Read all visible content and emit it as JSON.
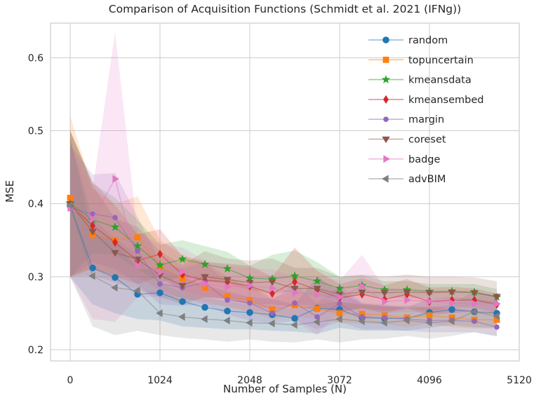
{
  "figure": {
    "title": "Comparison of Acquisition Functions (Schmidt et al. 2021 (IFNg))",
    "xlabel": "Number of Samples (N)",
    "ylabel": "MSE"
  },
  "chart_data": {
    "type": "line",
    "title": "Comparison of Acquisition Functions (Schmidt et al. 2021 (IFNg))",
    "xlabel": "Number of Samples (N)",
    "ylabel": "MSE",
    "grid": true,
    "legend_position": "upper right",
    "xticks": [
      0,
      1024,
      2048,
      3072,
      4096,
      5120
    ],
    "yticks": [
      0.2,
      0.3,
      0.4,
      0.5,
      0.6
    ],
    "xlim": [
      -224,
      5120
    ],
    "ylim": [
      0.195,
      0.647
    ],
    "band_opacity": 0.18,
    "line_opacity": 0.5,
    "x": [
      0,
      256,
      512,
      768,
      1024,
      1280,
      1536,
      1792,
      2048,
      2304,
      2560,
      2816,
      3072,
      3328,
      3584,
      3840,
      4096,
      4352,
      4608,
      4864
    ],
    "series": [
      {
        "name": "random",
        "color": "#1f77b4",
        "marker": "circle",
        "values": [
          0.397,
          0.312,
          0.299,
          0.276,
          0.278,
          0.266,
          0.258,
          0.253,
          0.251,
          0.248,
          0.243,
          0.257,
          0.255,
          0.244,
          0.243,
          0.243,
          0.251,
          0.255,
          0.252,
          0.25
        ],
        "band_lower": [
          0.3,
          0.262,
          0.25,
          0.242,
          0.24,
          0.232,
          0.23,
          0.228,
          0.228,
          0.226,
          0.225,
          0.222,
          0.23,
          0.226,
          0.226,
          0.226,
          0.23,
          0.234,
          0.231,
          0.23
        ],
        "band_upper": [
          0.49,
          0.36,
          0.35,
          0.31,
          0.312,
          0.3,
          0.288,
          0.28,
          0.272,
          0.27,
          0.262,
          0.3,
          0.28,
          0.263,
          0.26,
          0.258,
          0.27,
          0.272,
          0.27,
          0.266
        ]
      },
      {
        "name": "topuncertain",
        "color": "#ff7f0e",
        "marker": "square",
        "values": [
          0.408,
          0.357,
          0.35,
          0.354,
          0.314,
          0.297,
          0.285,
          0.273,
          0.268,
          0.255,
          0.261,
          0.256,
          0.25,
          0.249,
          0.247,
          0.244,
          0.247,
          0.244,
          0.241,
          0.241
        ],
        "band_lower": [
          0.3,
          0.31,
          0.302,
          0.3,
          0.282,
          0.27,
          0.266,
          0.258,
          0.252,
          0.242,
          0.246,
          0.242,
          0.237,
          0.236,
          0.235,
          0.231,
          0.236,
          0.231,
          0.229,
          0.229
        ],
        "band_upper": [
          0.52,
          0.42,
          0.4,
          0.41,
          0.35,
          0.33,
          0.32,
          0.3,
          0.288,
          0.272,
          0.28,
          0.272,
          0.265,
          0.263,
          0.26,
          0.256,
          0.26,
          0.257,
          0.252,
          0.252
        ]
      },
      {
        "name": "kmeansdata",
        "color": "#2ca02c",
        "marker": "star",
        "values": [
          0.4,
          0.378,
          0.368,
          0.342,
          0.316,
          0.324,
          0.317,
          0.311,
          0.298,
          0.297,
          0.301,
          0.294,
          0.284,
          0.288,
          0.282,
          0.282,
          0.28,
          0.28,
          0.279,
          0.272
        ],
        "band_lower": [
          0.3,
          0.332,
          0.33,
          0.31,
          0.292,
          0.3,
          0.294,
          0.29,
          0.282,
          0.276,
          0.28,
          0.272,
          0.27,
          0.275,
          0.271,
          0.271,
          0.27,
          0.27,
          0.269,
          0.261
        ],
        "band_upper": [
          0.5,
          0.428,
          0.408,
          0.378,
          0.344,
          0.35,
          0.342,
          0.334,
          0.315,
          0.33,
          0.336,
          0.32,
          0.3,
          0.302,
          0.294,
          0.294,
          0.29,
          0.29,
          0.29,
          0.283
        ]
      },
      {
        "name": "kmeansembed",
        "color": "#d62728",
        "marker": "thin-diamond",
        "values": [
          0.399,
          0.37,
          0.347,
          0.322,
          0.331,
          0.303,
          0.295,
          0.293,
          0.287,
          0.277,
          0.293,
          0.282,
          0.271,
          0.276,
          0.269,
          0.276,
          0.266,
          0.268,
          0.268,
          0.262
        ],
        "band_lower": [
          0.3,
          0.312,
          0.3,
          0.29,
          0.3,
          0.28,
          0.272,
          0.27,
          0.262,
          0.256,
          0.262,
          0.26,
          0.252,
          0.256,
          0.25,
          0.256,
          0.248,
          0.25,
          0.254,
          0.248
        ],
        "band_upper": [
          0.5,
          0.43,
          0.398,
          0.358,
          0.365,
          0.328,
          0.32,
          0.318,
          0.315,
          0.3,
          0.34,
          0.308,
          0.29,
          0.298,
          0.288,
          0.297,
          0.285,
          0.286,
          0.284,
          0.277
        ]
      },
      {
        "name": "margin",
        "color": "#9467bd",
        "marker": "small-circle",
        "values": [
          0.394,
          0.386,
          0.381,
          0.335,
          0.29,
          0.285,
          0.292,
          0.268,
          0.264,
          0.25,
          0.264,
          0.245,
          0.263,
          0.245,
          0.244,
          0.242,
          0.24,
          0.24,
          0.239,
          0.231
        ],
        "band_lower": [
          0.3,
          0.32,
          0.31,
          0.29,
          0.262,
          0.26,
          0.262,
          0.248,
          0.24,
          0.236,
          0.24,
          0.228,
          0.238,
          0.228,
          0.228,
          0.226,
          0.224,
          0.224,
          0.224,
          0.218
        ],
        "band_upper": [
          0.48,
          0.44,
          0.442,
          0.382,
          0.32,
          0.312,
          0.32,
          0.292,
          0.288,
          0.268,
          0.29,
          0.264,
          0.288,
          0.264,
          0.262,
          0.258,
          0.257,
          0.257,
          0.254,
          0.245
        ]
      },
      {
        "name": "coreset",
        "color": "#8c564b",
        "marker": "triangle-down",
        "values": [
          0.4,
          0.362,
          0.333,
          0.324,
          0.302,
          0.288,
          0.3,
          0.296,
          0.292,
          0.293,
          0.284,
          0.284,
          0.276,
          0.279,
          0.278,
          0.279,
          0.278,
          0.279,
          0.278,
          0.273
        ],
        "band_lower": [
          0.3,
          0.302,
          0.292,
          0.282,
          0.272,
          0.262,
          0.272,
          0.27,
          0.262,
          0.262,
          0.258,
          0.255,
          0.252,
          0.257,
          0.253,
          0.257,
          0.253,
          0.258,
          0.258,
          0.25
        ],
        "band_upper": [
          0.5,
          0.425,
          0.38,
          0.368,
          0.335,
          0.316,
          0.335,
          0.325,
          0.322,
          0.325,
          0.312,
          0.312,
          0.3,
          0.303,
          0.3,
          0.303,
          0.3,
          0.3,
          0.299,
          0.294
        ]
      },
      {
        "name": "badge",
        "color": "#e377c2",
        "marker": "triangle-right",
        "values": [
          0.394,
          0.379,
          0.434,
          0.315,
          0.306,
          0.307,
          0.29,
          0.286,
          0.288,
          0.284,
          0.278,
          0.276,
          0.272,
          0.287,
          0.266,
          0.268,
          0.266,
          0.264,
          0.263,
          0.263
        ],
        "band_lower": [
          0.3,
          0.242,
          0.238,
          0.272,
          0.272,
          0.272,
          0.262,
          0.26,
          0.252,
          0.252,
          0.24,
          0.22,
          0.252,
          0.242,
          0.25,
          0.252,
          0.25,
          0.25,
          0.25,
          0.246
        ],
        "band_upper": [
          0.48,
          0.42,
          0.635,
          0.36,
          0.345,
          0.34,
          0.322,
          0.315,
          0.312,
          0.31,
          0.3,
          0.3,
          0.295,
          0.33,
          0.285,
          0.284,
          0.281,
          0.279,
          0.276,
          0.276
        ]
      },
      {
        "name": "advBIM",
        "color": "#7f7f7f",
        "marker": "triangle-left",
        "values": [
          0.398,
          0.301,
          0.285,
          0.281,
          0.25,
          0.245,
          0.242,
          0.24,
          0.237,
          0.236,
          0.234,
          0.238,
          0.242,
          0.239,
          0.237,
          0.24,
          0.237,
          0.239,
          0.252,
          0.246
        ],
        "band_lower": [
          0.3,
          0.232,
          0.22,
          0.226,
          0.22,
          0.216,
          0.214,
          0.211,
          0.214,
          0.211,
          0.21,
          0.214,
          0.21,
          0.214,
          0.215,
          0.219,
          0.215,
          0.219,
          0.224,
          0.219
        ],
        "band_upper": [
          0.49,
          0.38,
          0.352,
          0.33,
          0.29,
          0.28,
          0.272,
          0.266,
          0.262,
          0.26,
          0.256,
          0.262,
          0.266,
          0.261,
          0.259,
          0.261,
          0.258,
          0.262,
          0.281,
          0.272
        ]
      }
    ]
  }
}
